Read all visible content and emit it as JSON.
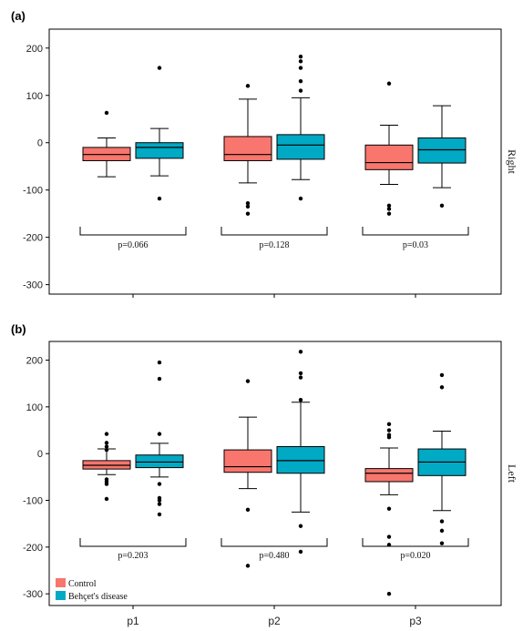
{
  "chart_data": [
    {
      "type": "box",
      "panel_label": "(a)",
      "strip_label": "Right",
      "categories": [
        "p1",
        "p2",
        "p3"
      ],
      "ylim": [
        -320,
        240
      ],
      "yticks": [
        200,
        100,
        0,
        -100,
        -200,
        -300
      ],
      "series": [
        {
          "name": "Control",
          "color": "#f8766d",
          "boxes": [
            {
              "min": -72,
              "q1": -38,
              "median": -25,
              "q3": -10,
              "max": 10,
              "outliers": [
                63
              ]
            },
            {
              "min": -85,
              "q1": -38,
              "median": -25,
              "q3": 13,
              "max": 92,
              "outliers": [
                120,
                -128,
                -135,
                -150
              ]
            },
            {
              "min": -88,
              "q1": -57,
              "median": -42,
              "q3": -5,
              "max": 37,
              "outliers": [
                125,
                -133,
                -140,
                -150
              ]
            }
          ]
        },
        {
          "name": "Behçet's disease",
          "color": "#00a9c4",
          "boxes": [
            {
              "min": -70,
              "q1": -33,
              "median": -10,
              "q3": 0,
              "max": 30,
              "outliers": [
                158,
                -118
              ]
            },
            {
              "min": -78,
              "q1": -35,
              "median": -5,
              "q3": 17,
              "max": 95,
              "outliers": [
                182,
                172,
                158,
                130,
                110,
                -118
              ]
            },
            {
              "min": -95,
              "q1": -43,
              "median": -15,
              "q3": 10,
              "max": 78,
              "outliers": [
                -133
              ]
            }
          ]
        }
      ],
      "pvalues": [
        "p=0.066",
        "p=0.128",
        "p=0.03"
      ]
    },
    {
      "type": "box",
      "panel_label": "(b)",
      "strip_label": "Left",
      "categories": [
        "p1",
        "p2",
        "p3"
      ],
      "ylim": [
        -325,
        240
      ],
      "yticks": [
        200,
        100,
        0,
        -100,
        -200,
        -300
      ],
      "series": [
        {
          "name": "Control",
          "color": "#f8766d",
          "boxes": [
            {
              "min": -45,
              "q1": -33,
              "median": -25,
              "q3": -15,
              "max": 10,
              "outliers": [
                42,
                23,
                15,
                8,
                -55,
                -60,
                -65,
                -97
              ]
            },
            {
              "min": -75,
              "q1": -40,
              "median": -28,
              "q3": 8,
              "max": 78,
              "outliers": [
                155,
                -120,
                -240
              ]
            },
            {
              "min": -88,
              "q1": -60,
              "median": -42,
              "q3": -32,
              "max": 12,
              "outliers": [
                63,
                50,
                40,
                35,
                -118,
                -178,
                -195,
                -300
              ]
            }
          ]
        },
        {
          "name": "Behçet's disease",
          "color": "#00a9c4",
          "boxes": [
            {
              "min": -50,
              "q1": -30,
              "median": -18,
              "q3": -3,
              "max": 22,
              "outliers": [
                195,
                160,
                42,
                -65,
                -95,
                -100,
                -108,
                -130
              ]
            },
            {
              "min": -125,
              "q1": -42,
              "median": -15,
              "q3": 15,
              "max": 110,
              "outliers": [
                218,
                172,
                163,
                115,
                -155,
                -210
              ]
            },
            {
              "min": -122,
              "q1": -47,
              "median": -18,
              "q3": 10,
              "max": 48,
              "outliers": [
                168,
                142,
                -145,
                -165,
                -192
              ]
            }
          ]
        }
      ],
      "pvalues": [
        "p=0.203",
        "p=0.480",
        "p=0.020"
      ]
    }
  ],
  "legend": [
    {
      "label": "Control",
      "color": "#f8766d"
    },
    {
      "label": "Behçet's disease",
      "color": "#00a9c4"
    }
  ]
}
